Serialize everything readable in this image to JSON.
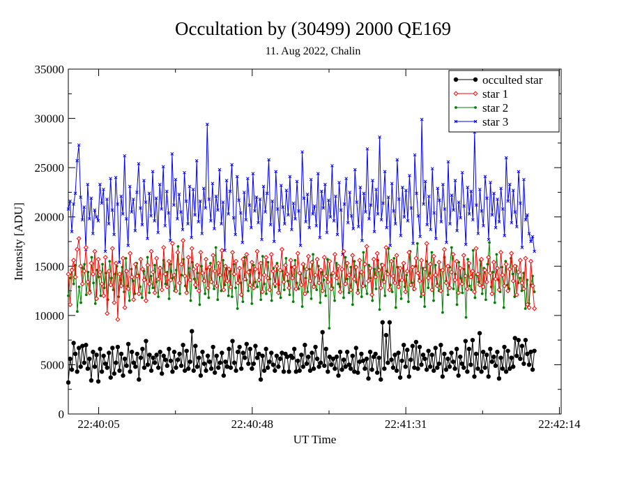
{
  "chart_data": {
    "type": "line",
    "title": "Occultation by (30499) 2000 QE169",
    "subtitle": "11. Aug 2022, Chalin",
    "xlabel": "UT Time",
    "ylabel": "Intensity [ADU]",
    "ylim": [
      0,
      35000
    ],
    "yticks": [
      "0",
      "5000",
      "10000",
      "15000",
      "20000",
      "25000",
      "30000",
      "35000"
    ],
    "xlim_s": [
      80396.5,
      80534.5
    ],
    "xticks": [
      {
        "t": 80405,
        "label": "22:40:05"
      },
      {
        "t": 80448,
        "label": "22:40:48"
      },
      {
        "t": 80491,
        "label": "22:41:31"
      },
      {
        "t": 80534,
        "label": "22:42:14"
      }
    ],
    "t_start_s": 80396.5,
    "t_end_s": 80527,
    "legend_position": "top-right",
    "grid": false,
    "series": [
      {
        "name": "occulted star",
        "color": "#000000",
        "marker": "circle",
        "values": [
          3200,
          5600,
          4500,
          7200,
          6100,
          4300,
          6700,
          4800,
          6900,
          5200,
          7000,
          4600,
          5600,
          3400,
          6300,
          4800,
          6000,
          3300,
          6600,
          4300,
          5900,
          5100,
          4700,
          6200,
          3700,
          6700,
          4100,
          5200,
          6800,
          4400,
          6100,
          3900,
          5600,
          4900,
          7100,
          4300,
          6300,
          5200,
          4800,
          6100,
          3500,
          5700,
          6600,
          4700,
          7400,
          5000,
          6000,
          4400,
          5700,
          5200,
          6000,
          4700,
          6300,
          4100,
          5900,
          5500,
          4900,
          6600,
          5400,
          4300,
          6300,
          4700,
          5500,
          6100,
          4900,
          7000,
          4400,
          6400,
          4600,
          5300,
          8400,
          4400,
          6900,
          4800,
          5700,
          3900,
          6300,
          5100,
          4400,
          5900,
          5300,
          4600,
          6800,
          4200,
          5900,
          4700,
          5200,
          6200,
          3900,
          5300,
          4800,
          6600,
          4700,
          7400,
          5200,
          4400,
          6300,
          6800,
          4600,
          6200,
          5700,
          7100,
          5100,
          6600,
          4600,
          5100,
          6900,
          5700,
          6100,
          3500,
          5900,
          4400,
          6600,
          4700,
          5300,
          6200,
          5000,
          4400,
          5900,
          4800,
          5600,
          6200,
          4300,
          6100,
          5800,
          4300,
          5900,
          5700,
          6600,
          4300,
          5400,
          4400,
          6000,
          4800,
          7000,
          5100,
          5800,
          4400,
          6200,
          4600,
          6800,
          5600,
          4800,
          5200,
          8300,
          4900,
          6600,
          4300,
          5800,
          5000,
          5600,
          4600,
          5800,
          3900,
          6300,
          4500,
          5500,
          4800,
          6300,
          5000,
          4600,
          5900,
          4300,
          6700,
          4200,
          5300,
          6100,
          5400,
          4600,
          5600,
          3600,
          6300,
          4500,
          5800,
          6100,
          4200,
          5700,
          3500,
          9300,
          4600,
          8000,
          5200,
          9300,
          5500,
          4700,
          6000,
          4400,
          6200,
          3700,
          5400,
          7000,
          4800,
          6500,
          3800,
          5500,
          6900,
          4700,
          7300,
          4600,
          6800,
          5000,
          6000,
          5600,
          4500,
          6400,
          4800,
          6000,
          4400,
          6700,
          4700,
          5100,
          7000,
          3800,
          6100,
          4500,
          5600,
          4800,
          6200,
          5300,
          4600,
          6600,
          3900,
          5800,
          5100,
          4700,
          7400,
          4300,
          6600,
          5000,
          7500,
          3800,
          6100,
          4600,
          8200,
          4300,
          6300,
          4700,
          6000,
          3800,
          6600,
          5300,
          5800,
          4900,
          6300,
          3600,
          5700,
          4600,
          6800,
          4300,
          6400,
          4600,
          5700,
          4800,
          7700,
          5900,
          7500,
          5600,
          6900,
          5100,
          7500,
          6100,
          5000,
          6300,
          4500,
          6400
        ]
      },
      {
        "name": "star 1",
        "color": "#ff0000",
        "marker": "diamond",
        "values": [
          14200,
          11100,
          14600,
          15600,
          13900,
          16700,
          17800,
          15000,
          13200,
          14500,
          16900,
          13400,
          12300,
          15300,
          14200,
          16500,
          11700,
          15700,
          14400,
          13200,
          12000,
          15900,
          10200,
          14500,
          13100,
          16800,
          11300,
          15300,
          9600,
          14200,
          13000,
          15800,
          10800,
          14500,
          12700,
          16300,
          13900,
          11600,
          15200,
          14000,
          12200,
          15700,
          14700,
          13600,
          11500,
          15100,
          13200,
          16500,
          14400,
          12300,
          15800,
          13700,
          14800,
          12600,
          16900,
          14200,
          12900,
          15500,
          13600,
          17300,
          14100,
          12500,
          16400,
          13300,
          15200,
          17600,
          14000,
          12300,
          15900,
          13600,
          16800,
          14700,
          13100,
          15100,
          12500,
          16400,
          14300,
          13500,
          15700,
          12800,
          14900,
          13400,
          16100,
          14500,
          13000,
          15300,
          14100,
          16600,
          12600,
          15000,
          13500,
          14700,
          12900,
          16400,
          14200,
          15500,
          13300,
          14800,
          12100,
          15700,
          13700,
          16200,
          14400,
          13100,
          15400,
          12800,
          14700,
          16500,
          13600,
          15300,
          12400,
          14100,
          15900,
          13800,
          12600,
          16200,
          14500,
          13200,
          15000,
          12300,
          14600,
          16700,
          13400,
          15100,
          14200,
          12800,
          15600,
          13800,
          14900,
          12700,
          16300,
          14300,
          13100,
          15200,
          12200,
          14700,
          16000,
          13500,
          15400,
          12900,
          14100,
          15700,
          13300,
          14600,
          12500,
          15900,
          14000,
          13400,
          15500,
          12700,
          14300,
          16200,
          13800,
          15000,
          12400,
          14700,
          16500,
          13200,
          15300,
          14100,
          12600,
          16100,
          13700,
          14900,
          12300,
          15600,
          14400,
          13000,
          15200,
          17000,
          13500,
          14800,
          12100,
          15700,
          13900,
          16300,
          14600,
          12800,
          15100,
          13400,
          16900,
          14200,
          12600,
          15500,
          14000,
          13300,
          16100,
          12900,
          14800,
          13600,
          15300,
          12400,
          14500,
          16400,
          13100,
          14900,
          12700,
          15800,
          14300,
          13500,
          15600,
          12200,
          14700,
          17300,
          13800,
          15200,
          12600,
          16000,
          14100,
          13000,
          15400,
          12500,
          14600,
          16700,
          13300,
          15000,
          12800,
          14400,
          16200,
          13600,
          15500,
          12300,
          14800,
          13200,
          16100,
          14000,
          12700,
          15300,
          13900,
          14500,
          12400,
          16800,
          14200,
          13100,
          15700,
          12900,
          14600,
          13400,
          15900,
          14300,
          12200,
          15400,
          13700,
          14800,
          12600,
          16400,
          14100,
          13000,
          15200,
          12500,
          14700,
          16300,
          13500,
          15000,
          12100,
          14400,
          15600,
          13300,
          12700,
          15800,
          11100,
          10800,
          15500,
          13000,
          10700
        ]
      },
      {
        "name": "star 2",
        "color": "#008000",
        "marker": "circle-small",
        "values": [
          12000,
          13800,
          14700,
          13200,
          15100,
          10400,
          12900,
          11300,
          14800,
          15200,
          12100,
          14400,
          12500,
          15900,
          13300,
          11200,
          14600,
          13900,
          12000,
          15200,
          12800,
          14300,
          11600,
          15500,
          13800,
          12600,
          14200,
          15000,
          11900,
          13600,
          14900,
          12400,
          15800,
          13000,
          11500,
          14700,
          13500,
          12200,
          15300,
          14100,
          12900,
          11800,
          14500,
          13600,
          15900,
          12300,
          14000,
          12800,
          15100,
          13400,
          11900,
          14900,
          12600,
          15600,
          13200,
          14400,
          11700,
          15200,
          13800,
          12500,
          14600,
          17000,
          12200,
          14100,
          15700,
          13000,
          12400,
          14800,
          11500,
          15400,
          13700,
          12800,
          14300,
          11100,
          15000,
          13500,
          12200,
          14700,
          11800,
          15300,
          13400,
          12700,
          16900,
          11600,
          14200,
          12500,
          15600,
          13100,
          14800,
          12000,
          14500,
          11900,
          15200,
          12800,
          10700,
          14000,
          13300,
          11400,
          15900,
          13600,
          12500,
          14600,
          11200,
          15100,
          13400,
          12900,
          14300,
          11600,
          16000,
          13200,
          12200,
          15400,
          13700,
          11500,
          14800,
          12900,
          15300,
          13100,
          11800,
          14500,
          12600,
          15800,
          13500,
          12100,
          14900,
          11400,
          15600,
          13300,
          12700,
          14200,
          10900,
          15200,
          13800,
          12400,
          14700,
          11700,
          16200,
          13000,
          12600,
          15000,
          11300,
          14400,
          13600,
          12000,
          15700,
          8700,
          14100,
          12800,
          11500,
          15300,
          13200,
          12900,
          14600,
          11800,
          15900,
          13700,
          12300,
          14900,
          11100,
          15500,
          13400,
          12600,
          14300,
          11900,
          16400,
          13000,
          12200,
          15100,
          13800,
          11500,
          14700,
          12700,
          15600,
          10600,
          15200,
          13600,
          12000,
          14500,
          16800,
          13100,
          12400,
          15800,
          10800,
          14900,
          13500,
          11700,
          15300,
          12900,
          14100,
          11400,
          16500,
          13300,
          12600,
          15000,
          17300,
          13700,
          11900,
          14800,
          10900,
          15500,
          12800,
          14300,
          16400,
          11500,
          15100,
          13200,
          12500,
          14600,
          10300,
          15900,
          13500,
          12100,
          14900,
          16900,
          12700,
          14200,
          11100,
          15400,
          13800,
          12300,
          14700,
          9800,
          15700,
          13000,
          12600,
          16600,
          11800,
          14100,
          13400,
          15600,
          12200,
          14800,
          11600,
          15200,
          17400,
          12900,
          14400,
          11300,
          16200,
          13600,
          12400,
          14900,
          10800,
          15500,
          13100,
          12700,
          15800,
          14200,
          11900,
          15000,
          13300,
          13800,
          12500,
          14300,
          10700,
          13600,
          11200,
          13100,
          14000,
          12400
        ]
      },
      {
        "name": "star 3",
        "color": "#0000ff",
        "marker": "x",
        "values": [
          20800,
          21600,
          18500,
          21300,
          22400,
          25700,
          27300,
          22000,
          19700,
          21000,
          16700,
          23300,
          19800,
          21900,
          18300,
          20700,
          20000,
          19600,
          23300,
          21400,
          22800,
          16500,
          21800,
          19300,
          23900,
          20700,
          18200,
          24000,
          21300,
          15400,
          22100,
          20300,
          26200,
          19800,
          17100,
          23100,
          20500,
          21800,
          18600,
          22500,
          25400,
          20900,
          19200,
          23700,
          21500,
          17800,
          22400,
          20100,
          24600,
          19600,
          21900,
          18400,
          23300,
          20800,
          25100,
          19100,
          22600,
          20400,
          17600,
          26400,
          21200,
          23800,
          19800,
          22300,
          20500,
          18700,
          24500,
          21600,
          19300,
          23100,
          17900,
          22800,
          20200,
          25700,
          19500,
          21600,
          18300,
          22900,
          20900,
          29400,
          21800,
          19600,
          23400,
          18800,
          22100,
          20700,
          24800,
          19300,
          21500,
          16600,
          23700,
          20300,
          22600,
          25300,
          19900,
          18200,
          24100,
          21700,
          20400,
          17400,
          22500,
          19700,
          23900,
          21200,
          18900,
          24400,
          20600,
          22000,
          19400,
          21800,
          17700,
          23100,
          20500,
          22400,
          25800,
          19200,
          21600,
          17500,
          24600,
          20800,
          18600,
          23200,
          21000,
          19300,
          22700,
          20200,
          24100,
          18700,
          21400,
          19800,
          23600,
          20600,
          17100,
          26600,
          21900,
          19500,
          22300,
          18900,
          23800,
          20300,
          21100,
          19100,
          24400,
          17900,
          22600,
          20900,
          23300,
          18400,
          21700,
          20000,
          25200,
          19600,
          22100,
          18200,
          23500,
          20700,
          16200,
          21300,
          23900,
          19400,
          22500,
          20100,
          18800,
          24800,
          21500,
          19000,
          23000,
          17600,
          22400,
          20500,
          26900,
          19800,
          21200,
          23700,
          18500,
          22800,
          20300,
          28100,
          19700,
          21400,
          24600,
          18900,
          22000,
          17100,
          23400,
          20600,
          19300,
          25800,
          21800,
          18100,
          23000,
          20000,
          22700,
          19600,
          24200,
          20900,
          17300,
          26300,
          22400,
          20100,
          18000,
          29900,
          21300,
          23600,
          19200,
          22100,
          18700,
          24900,
          20400,
          17800,
          22900,
          21700,
          19500,
          23300,
          20800,
          17400,
          25600,
          19300,
          22200,
          20700,
          23700,
          18600,
          21500,
          19900,
          24500,
          21100,
          17200,
          23000,
          20300,
          22600,
          19700,
          28600,
          21200,
          18300,
          22800,
          20600,
          19100,
          24100,
          21900,
          17700,
          23500,
          20200,
          22400,
          18900,
          21800,
          19500,
          22900,
          20800,
          18100,
          26000,
          21600,
          23300,
          19400,
          22700,
          20500,
          19000,
          24600,
          21400,
          16900,
          23800,
          19700,
          20200,
          18300,
          17500,
          18000,
          16500
        ]
      }
    ]
  }
}
